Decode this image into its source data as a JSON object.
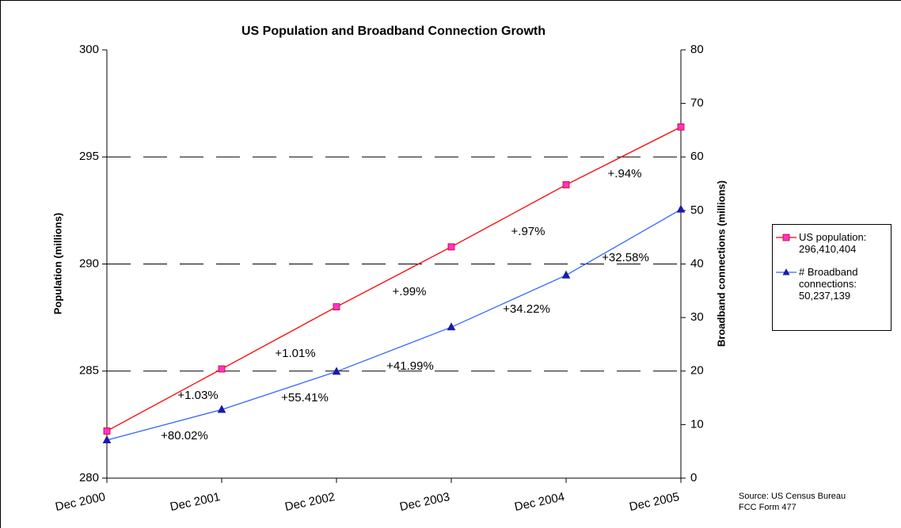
{
  "chart_data": {
    "type": "line",
    "title": "US Population and Broadband Connection Growth",
    "categories": [
      "Dec 2000",
      "Dec 2001",
      "Dec 2002",
      "Dec 2003",
      "Dec 2004",
      "Dec 2005"
    ],
    "series": [
      {
        "name": "US population: 296,410,404",
        "color": "#ff0000",
        "marker_color": "#ff33cc",
        "marker": "square",
        "values": [
          282.2,
          285.1,
          288.0,
          290.8,
          293.7,
          296.4
        ]
      },
      {
        "name": "# Broadband connections: 50,237,139",
        "color": "#3366ff",
        "marker_color": "#1a1aa8",
        "marker": "triangle",
        "axis": "y2",
        "values": [
          7.1,
          12.8,
          19.9,
          28.2,
          37.9,
          50.2
        ]
      }
    ],
    "ylabel": "Population (millions)",
    "y2label": "Broadband connections (millions)",
    "ylim": [
      280,
      300
    ],
    "yticks": [
      280,
      285,
      290,
      295,
      300
    ],
    "y2lim": [
      0,
      80
    ],
    "y2ticks": [
      0,
      10,
      20,
      30,
      40,
      50,
      60,
      70,
      80
    ],
    "grid": true,
    "legend": "right",
    "annotations": [
      "+1.03%",
      "+1.01%",
      "+.99%",
      "+.97%",
      "+.94%",
      "+80.02%",
      "+55.41%",
      "+41.99%",
      "+34.22%",
      "+32.58%"
    ],
    "source": [
      "Source:  US Census Bureau",
      "FCC Form 477"
    ]
  }
}
